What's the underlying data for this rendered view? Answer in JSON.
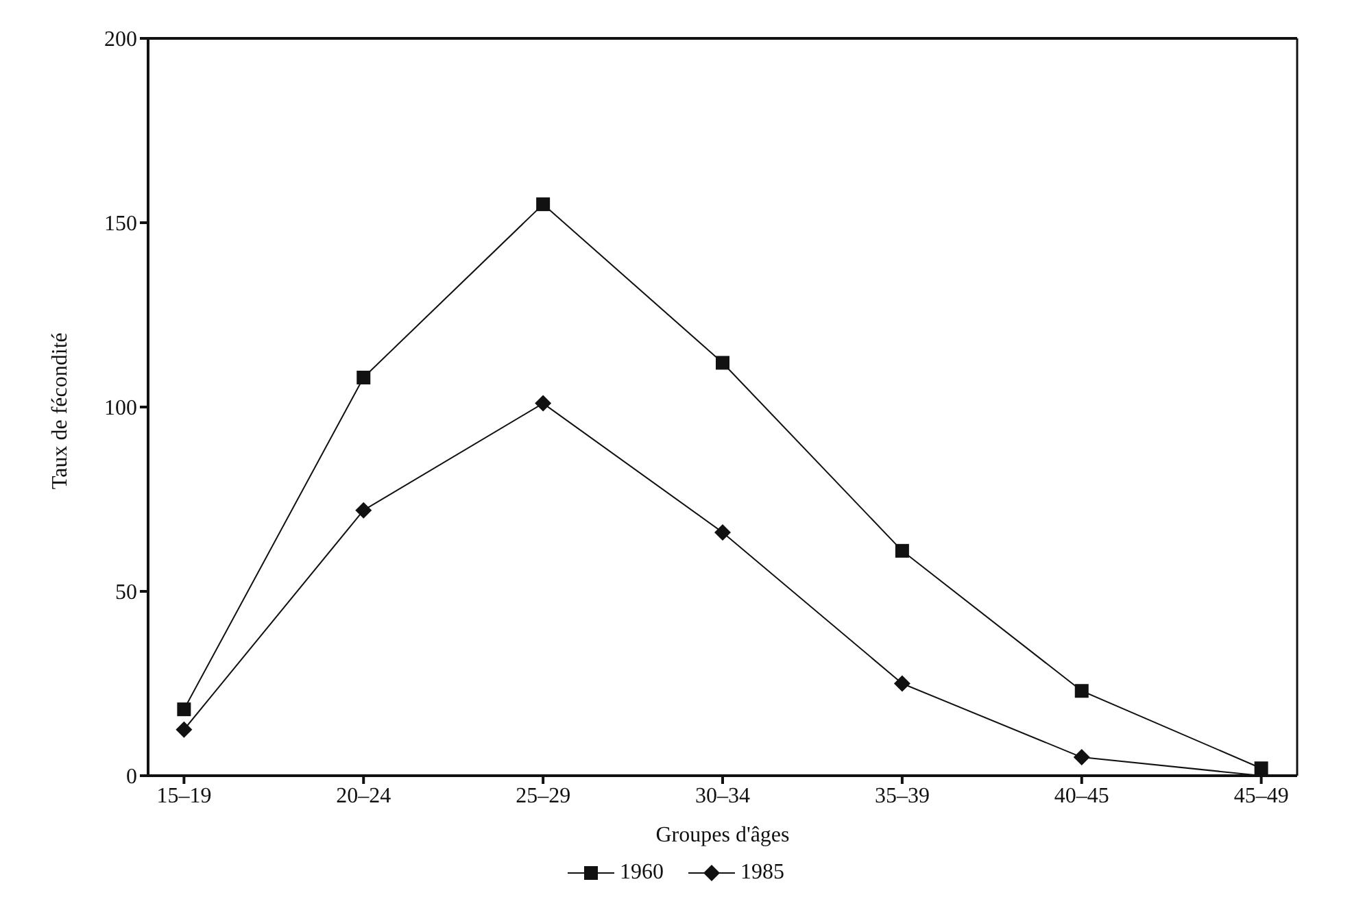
{
  "chart_data": {
    "type": "line",
    "xlabel": "Groupes d'âges",
    "ylabel": "Taux de fécondité",
    "categories": [
      "15–19",
      "20–24",
      "25–29",
      "30–34",
      "35–39",
      "40–45",
      "45–49"
    ],
    "ylim": [
      0,
      200
    ],
    "yticks": [
      0,
      50,
      100,
      150,
      200
    ],
    "grid": false,
    "legend": "bottom",
    "series": [
      {
        "name": "1960",
        "color": "#111111",
        "marker": "square",
        "values": [
          18,
          108,
          155,
          112,
          61,
          23,
          2
        ]
      },
      {
        "name": "1985",
        "color": "#111111",
        "marker": "diamond",
        "values": [
          12.5,
          72,
          101,
          66,
          25,
          5,
          0
        ]
      }
    ]
  }
}
